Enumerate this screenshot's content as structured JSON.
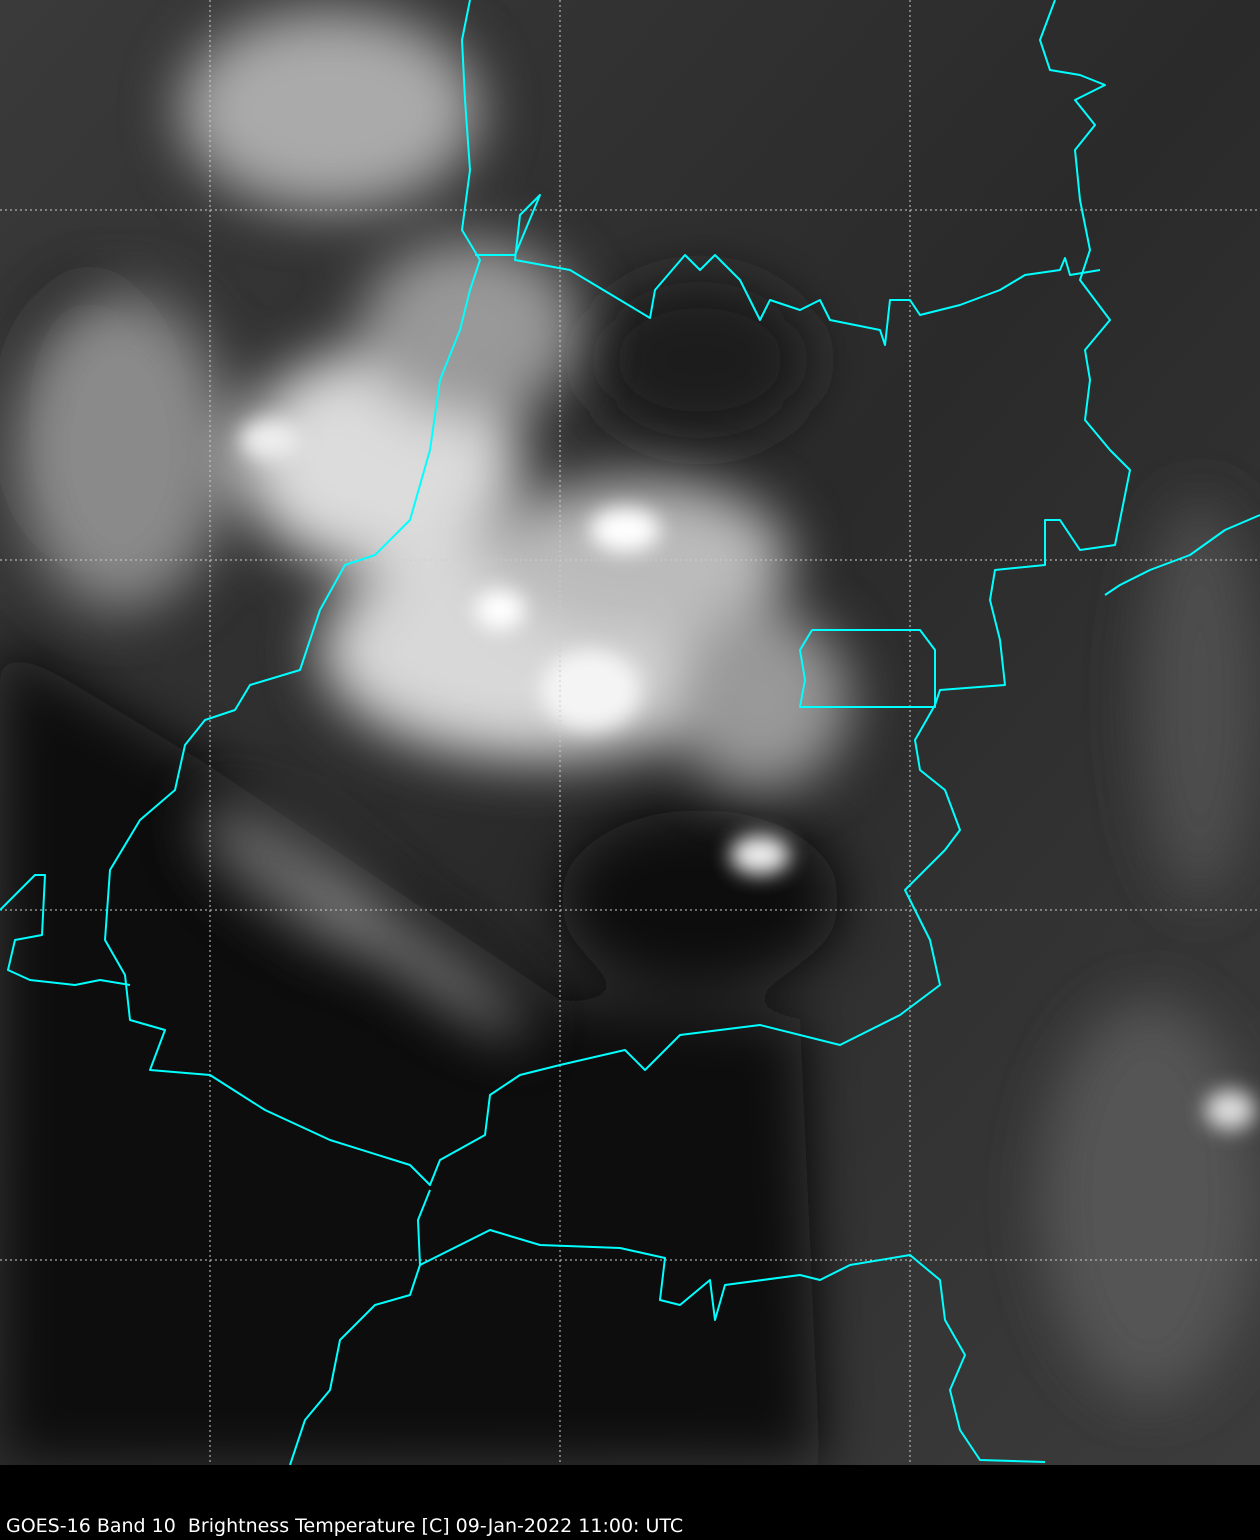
{
  "caption": "GOES-16 Band 10  Brightness Temperature [C] 09-Jan-2022 11:00: UTC",
  "colors": {
    "border": "#00ffff",
    "grid": "#cccccc",
    "background": "#000000"
  },
  "grid": {
    "style": "dashed",
    "visible": true
  }
}
